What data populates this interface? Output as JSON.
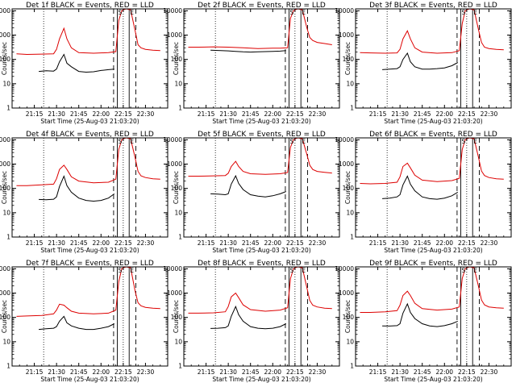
{
  "colors": {
    "events": "#000000",
    "lld": "#dd0000",
    "axis": "#000000",
    "background": "#ffffff"
  },
  "shared": {
    "ylabel": "Counts/sec",
    "xlabel": "Start Time (25-Aug-03 21:03:20)",
    "x_ticks": [
      "21:15",
      "21:30",
      "21:45",
      "22:00",
      "22:15",
      "22:30"
    ],
    "x_tick_minutes": [
      15,
      30,
      45,
      60,
      75,
      90
    ],
    "y_ticks": [
      "1",
      "10",
      "100",
      "1000",
      "10000"
    ],
    "y_tick_values": [
      1,
      10,
      100,
      1000,
      10000
    ],
    "xlim_minutes": [
      0,
      105
    ],
    "ylim": [
      1,
      12000
    ],
    "dotted_marker_minutes": [
      21.3,
      75.0
    ],
    "dashed_marker_minutes": [
      68.5,
      83.5
    ],
    "event_marker_minutes": [
      71.0,
      79.0
    ]
  },
  "chart_data": [
    {
      "type": "line",
      "title": "Det 1f BLACK = Events, RED = LLD",
      "series": [
        {
          "name": "Events",
          "x": [
            18,
            23,
            28,
            30,
            32,
            35,
            37,
            40,
            45,
            50,
            55,
            60,
            65,
            69
          ],
          "y": [
            32,
            34,
            33,
            40,
            80,
            160,
            70,
            50,
            32,
            30,
            31,
            35,
            38,
            40
          ]
        },
        {
          "name": "LLD",
          "x": [
            3,
            10,
            20,
            28,
            30,
            32,
            35,
            37,
            40,
            45,
            55,
            65,
            70,
            72,
            74,
            75,
            77,
            80,
            83,
            85,
            87,
            90,
            95,
            100
          ],
          "y": [
            170,
            160,
            165,
            170,
            260,
            700,
            1900,
            700,
            300,
            190,
            180,
            190,
            210,
            4000,
            10000,
            11000,
            12000,
            11000,
            1500,
            400,
            300,
            260,
            240,
            230
          ]
        }
      ],
      "annotations": {
        "S": 71.0,
        "E": 79.0
      }
    },
    {
      "type": "line",
      "title": "Det 2f BLACK = Events, RED = LLD",
      "series": [
        {
          "name": "Events",
          "x": [
            18,
            25,
            30,
            35,
            40,
            45,
            50,
            55,
            60,
            65,
            69
          ],
          "y": [
            240,
            230,
            225,
            215,
            205,
            200,
            205,
            210,
            215,
            220,
            230
          ]
        },
        {
          "name": "LLD",
          "x": [
            3,
            10,
            20,
            30,
            40,
            50,
            60,
            65,
            70,
            72,
            74,
            75,
            77,
            80,
            83,
            85,
            87,
            90,
            95,
            100
          ],
          "y": [
            320,
            320,
            330,
            320,
            300,
            280,
            290,
            290,
            300,
            5000,
            10000,
            11000,
            12000,
            11000,
            2000,
            800,
            600,
            500,
            450,
            400
          ]
        }
      ],
      "annotations": {
        "S": 71.0,
        "E": 79.0
      }
    },
    {
      "type": "line",
      "title": "Det 3f BLACK = Events, RED = LLD",
      "series": [
        {
          "name": "Events",
          "x": [
            18,
            23,
            28,
            30,
            32,
            35,
            37,
            40,
            45,
            50,
            55,
            60,
            65,
            69
          ],
          "y": [
            38,
            40,
            42,
            50,
            100,
            180,
            80,
            50,
            40,
            40,
            42,
            45,
            55,
            75
          ]
        },
        {
          "name": "LLD",
          "x": [
            3,
            10,
            20,
            28,
            30,
            32,
            35,
            37,
            40,
            45,
            55,
            65,
            70,
            72,
            74,
            75,
            77,
            80,
            83,
            85,
            87,
            90,
            95,
            100
          ],
          "y": [
            190,
            185,
            180,
            185,
            260,
            700,
            1500,
            700,
            300,
            200,
            180,
            190,
            230,
            3000,
            10000,
            11000,
            12000,
            11000,
            1600,
            500,
            320,
            280,
            260,
            250
          ]
        }
      ],
      "annotations": {
        "S": 71.0,
        "E": 79.0
      }
    },
    {
      "type": "line",
      "title": "Det 4f BLACK = Events, RED = LLD",
      "series": [
        {
          "name": "Events",
          "x": [
            18,
            23,
            28,
            30,
            32,
            35,
            37,
            40,
            45,
            50,
            55,
            60,
            65,
            69
          ],
          "y": [
            35,
            34,
            36,
            45,
            120,
            320,
            130,
            70,
            40,
            32,
            30,
            32,
            40,
            60
          ]
        },
        {
          "name": "LLD",
          "x": [
            3,
            10,
            20,
            28,
            30,
            32,
            35,
            37,
            40,
            45,
            55,
            65,
            70,
            72,
            74,
            75,
            77,
            80,
            83,
            85,
            87,
            90,
            95,
            100
          ],
          "y": [
            130,
            130,
            140,
            150,
            250,
            600,
            900,
            600,
            300,
            200,
            170,
            180,
            240,
            4000,
            10000,
            11000,
            12000,
            11000,
            1800,
            500,
            330,
            280,
            250,
            240
          ]
        }
      ],
      "annotations": {
        "S": 71.0,
        "E": 79.0
      }
    },
    {
      "type": "line",
      "title": "Det 5f BLACK = Events, RED = LLD",
      "series": [
        {
          "name": "Events",
          "x": [
            18,
            23,
            28,
            30,
            32,
            35,
            37,
            40,
            45,
            50,
            55,
            60,
            65,
            69
          ],
          "y": [
            60,
            58,
            55,
            60,
            150,
            330,
            160,
            90,
            55,
            48,
            45,
            50,
            60,
            75
          ]
        },
        {
          "name": "LLD",
          "x": [
            3,
            10,
            20,
            28,
            30,
            32,
            35,
            37,
            40,
            45,
            55,
            65,
            70,
            72,
            74,
            75,
            77,
            80,
            83,
            85,
            87,
            90,
            95,
            100
          ],
          "y": [
            320,
            320,
            330,
            340,
            420,
            800,
            1300,
            800,
            500,
            400,
            380,
            400,
            450,
            5000,
            10000,
            11000,
            12000,
            11000,
            2500,
            900,
            600,
            500,
            460,
            430
          ]
        }
      ],
      "annotations": {
        "S": 71.0,
        "E": 79.0
      }
    },
    {
      "type": "line",
      "title": "Det 6f BLACK = Events, RED = LLD",
      "series": [
        {
          "name": "Events",
          "x": [
            18,
            23,
            28,
            30,
            32,
            35,
            37,
            40,
            45,
            50,
            55,
            60,
            65,
            69
          ],
          "y": [
            38,
            40,
            45,
            55,
            140,
            320,
            150,
            80,
            45,
            38,
            36,
            40,
            50,
            70
          ]
        },
        {
          "name": "LLD",
          "x": [
            3,
            10,
            20,
            28,
            30,
            32,
            35,
            37,
            40,
            45,
            55,
            65,
            70,
            72,
            74,
            75,
            77,
            80,
            83,
            85,
            87,
            90,
            95,
            100
          ],
          "y": [
            160,
            155,
            160,
            180,
            300,
            800,
            1100,
            700,
            350,
            220,
            190,
            210,
            260,
            4000,
            10000,
            11000,
            12000,
            11000,
            1800,
            520,
            340,
            280,
            250,
            240
          ]
        }
      ],
      "annotations": {
        "S": 71.0,
        "E": 79.0
      }
    },
    {
      "type": "line",
      "title": "Det 7f BLACK = Events, RED = LLD",
      "series": [
        {
          "name": "Events",
          "x": [
            18,
            23,
            28,
            30,
            32,
            35,
            37,
            40,
            45,
            50,
            55,
            60,
            65,
            69
          ],
          "y": [
            32,
            34,
            36,
            42,
            70,
            110,
            60,
            45,
            36,
            32,
            32,
            36,
            42,
            55
          ]
        },
        {
          "name": "LLD",
          "x": [
            3,
            10,
            20,
            28,
            30,
            32,
            35,
            37,
            40,
            45,
            55,
            65,
            70,
            72,
            74,
            75,
            77,
            80,
            83,
            85,
            87,
            90,
            95,
            100
          ],
          "y": [
            110,
            115,
            120,
            140,
            200,
            350,
            320,
            250,
            180,
            150,
            140,
            150,
            200,
            3000,
            10000,
            11000,
            12000,
            11000,
            1200,
            400,
            300,
            260,
            240,
            230
          ]
        }
      ],
      "annotations": {
        "S": 71.0,
        "E": 79.0
      }
    },
    {
      "type": "line",
      "title": "Det 8f BLACK = Events, RED = LLD",
      "series": [
        {
          "name": "Events",
          "x": [
            18,
            23,
            28,
            30,
            32,
            35,
            37,
            40,
            45,
            50,
            55,
            60,
            65,
            69
          ],
          "y": [
            35,
            36,
            38,
            45,
            110,
            280,
            130,
            70,
            42,
            36,
            34,
            36,
            42,
            55
          ]
        },
        {
          "name": "LLD",
          "x": [
            3,
            10,
            20,
            28,
            30,
            32,
            35,
            37,
            40,
            45,
            55,
            65,
            70,
            72,
            74,
            75,
            77,
            80,
            83,
            85,
            87,
            90,
            95,
            100
          ],
          "y": [
            150,
            150,
            155,
            170,
            280,
            700,
            1000,
            650,
            330,
            210,
            180,
            200,
            250,
            4000,
            10000,
            11000,
            12000,
            11000,
            1700,
            500,
            320,
            270,
            240,
            230
          ]
        }
      ],
      "annotations": {
        "S": 71.0,
        "E": 79.0
      }
    },
    {
      "type": "line",
      "title": "Det 9f BLACK = Events, RED = LLD",
      "series": [
        {
          "name": "Events",
          "x": [
            18,
            23,
            28,
            30,
            32,
            35,
            37,
            40,
            45,
            50,
            55,
            60,
            65,
            69
          ],
          "y": [
            45,
            44,
            46,
            55,
            150,
            360,
            160,
            90,
            55,
            45,
            42,
            46,
            55,
            70
          ]
        },
        {
          "name": "LLD",
          "x": [
            3,
            10,
            20,
            28,
            30,
            32,
            35,
            37,
            40,
            45,
            55,
            65,
            70,
            72,
            74,
            75,
            77,
            80,
            83,
            85,
            87,
            90,
            95,
            100
          ],
          "y": [
            160,
            160,
            170,
            190,
            320,
            800,
            1200,
            800,
            380,
            230,
            200,
            220,
            270,
            4000,
            10000,
            11000,
            12000,
            11000,
            1800,
            520,
            330,
            270,
            250,
            240
          ]
        }
      ],
      "annotations": {
        "S": 71.0,
        "E": 79.0
      }
    }
  ]
}
